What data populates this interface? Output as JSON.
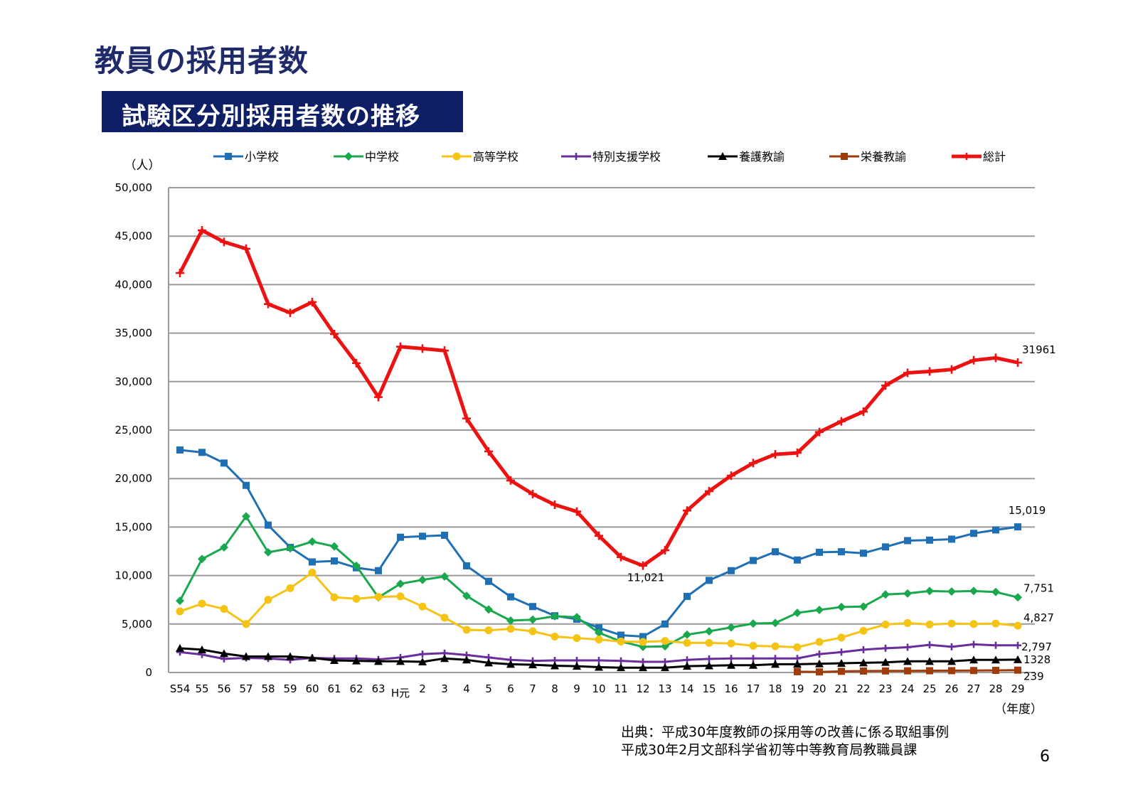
{
  "page": {
    "title": "教員の採用者数",
    "subtitle": "試験区分別採用者数の推移",
    "source_line1": "出典：平成30年度教師の採用等の改善に係る取組事例",
    "source_line2": "平成30年2月文部科学省初等中等教育局教職員課",
    "page_number": "6"
  },
  "chart_data": {
    "type": "line",
    "y_unit": "（人）",
    "x_unit": "（年度）",
    "ylim": [
      0,
      50000
    ],
    "yticks": [
      0,
      5000,
      10000,
      15000,
      20000,
      25000,
      30000,
      35000,
      40000,
      45000,
      50000
    ],
    "ytick_labels": [
      "0",
      "5,000",
      "10,000",
      "15,000",
      "20,000",
      "25,000",
      "30,000",
      "35,000",
      "40,000",
      "45,000",
      "50,000"
    ],
    "grid": true,
    "legend_position": "top",
    "categories": [
      "S54",
      "55",
      "56",
      "57",
      "58",
      "59",
      "60",
      "61",
      "62",
      "63",
      "H元",
      "2",
      "3",
      "4",
      "5",
      "6",
      "7",
      "8",
      "9",
      "10",
      "11",
      "12",
      "13",
      "14",
      "15",
      "16",
      "17",
      "18",
      "19",
      "20",
      "21",
      "22",
      "23",
      "24",
      "25",
      "26",
      "27",
      "28",
      "29"
    ],
    "series": [
      {
        "name": "小学校",
        "color": "#1f6fb5",
        "marker": "square",
        "values": [
          22950,
          22700,
          21600,
          19300,
          15200,
          12900,
          11400,
          11500,
          10800,
          10500,
          13950,
          14050,
          14150,
          11000,
          9400,
          7800,
          6800,
          5850,
          5500,
          4600,
          3850,
          3700,
          5000,
          7850,
          9500,
          10500,
          11550,
          12450,
          11600,
          12400,
          12450,
          12300,
          12950,
          13600,
          13650,
          13750,
          14350,
          14700,
          15019
        ],
        "end_label": "15,019",
        "line_width": 3
      },
      {
        "name": "中学校",
        "color": "#1aa84f",
        "marker": "diamond",
        "values": [
          7400,
          11700,
          12900,
          16100,
          12400,
          12800,
          13500,
          13000,
          11000,
          7750,
          9150,
          9550,
          9900,
          7900,
          6500,
          5350,
          5450,
          5800,
          5700,
          4100,
          3200,
          2650,
          2700,
          3900,
          4250,
          4650,
          5050,
          5100,
          6150,
          6450,
          6750,
          6800,
          8050,
          8150,
          8400,
          8350,
          8400,
          8300,
          7751
        ],
        "end_label": "7,751",
        "line_width": 3
      },
      {
        "name": "高等学校",
        "color": "#f5c314",
        "marker": "circle",
        "values": [
          6300,
          7100,
          6550,
          5000,
          7500,
          8700,
          10300,
          7750,
          7600,
          7800,
          7850,
          6800,
          5650,
          4400,
          4350,
          4500,
          4250,
          3700,
          3550,
          3400,
          3200,
          3150,
          3250,
          3050,
          3050,
          3000,
          2750,
          2700,
          2600,
          3150,
          3600,
          4300,
          4950,
          5100,
          4950,
          5050,
          5000,
          5050,
          4827
        ],
        "end_label": "4,827",
        "line_width": 3
      },
      {
        "name": "特別支援学校",
        "color": "#6a2d9c",
        "marker": "plus",
        "values": [
          2100,
          1850,
          1400,
          1500,
          1450,
          1300,
          1500,
          1450,
          1450,
          1350,
          1550,
          1900,
          2000,
          1800,
          1550,
          1300,
          1200,
          1250,
          1250,
          1250,
          1200,
          1100,
          1100,
          1300,
          1400,
          1450,
          1450,
          1450,
          1450,
          1900,
          2100,
          2350,
          2500,
          2600,
          2850,
          2650,
          2900,
          2800,
          2797
        ],
        "end_label": "2,797",
        "line_width": 3
      },
      {
        "name": "養護教諭",
        "color": "#000000",
        "marker": "triangle",
        "values": [
          2500,
          2350,
          1950,
          1650,
          1650,
          1650,
          1500,
          1250,
          1200,
          1150,
          1150,
          1100,
          1450,
          1300,
          1000,
          850,
          800,
          700,
          650,
          550,
          500,
          500,
          500,
          650,
          700,
          750,
          750,
          850,
          850,
          900,
          950,
          1000,
          1050,
          1150,
          1150,
          1150,
          1300,
          1300,
          1328
        ],
        "end_label": "1328",
        "line_width": 3
      },
      {
        "name": "栄養教諭",
        "color": "#a03c0a",
        "marker": "square",
        "values": [
          null,
          null,
          null,
          null,
          null,
          null,
          null,
          null,
          null,
          null,
          null,
          null,
          null,
          null,
          null,
          null,
          null,
          null,
          null,
          null,
          null,
          null,
          null,
          null,
          null,
          null,
          null,
          null,
          80,
          60,
          120,
          150,
          160,
          170,
          180,
          190,
          200,
          220,
          239
        ],
        "end_label": "239",
        "line_width": 3
      },
      {
        "name": "総計",
        "color": "#ee1111",
        "marker": "plus",
        "values": [
          41200,
          45600,
          44400,
          43700,
          38000,
          37100,
          38200,
          34900,
          31900,
          28400,
          33600,
          33400,
          33200,
          26200,
          22800,
          19800,
          18400,
          17300,
          16600,
          14100,
          11900,
          11021,
          12600,
          16700,
          18700,
          20300,
          21600,
          22500,
          22650,
          24800,
          25900,
          26900,
          29600,
          30900,
          31050,
          31250,
          32200,
          32450,
          31961
        ],
        "end_label": "31961",
        "line_width": 5
      }
    ],
    "annotations": [
      {
        "text": "11,021",
        "category": "12",
        "series": "総計"
      }
    ]
  }
}
